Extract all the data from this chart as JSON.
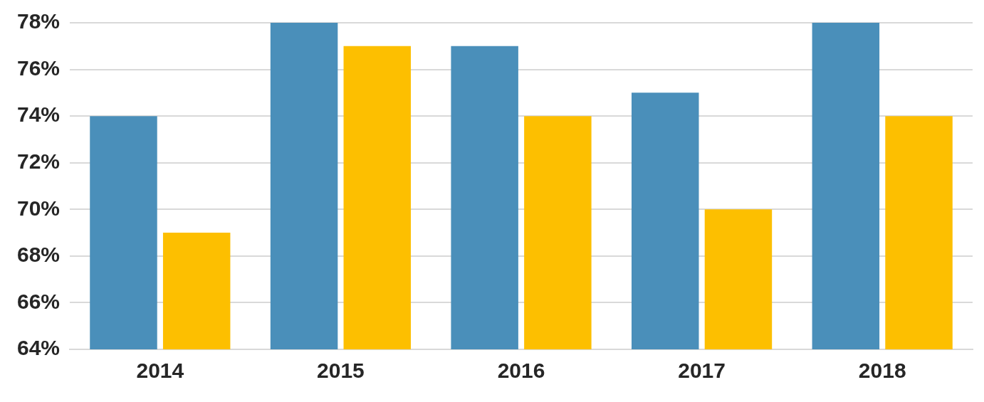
{
  "chart_data": {
    "type": "bar",
    "categories": [
      "2014",
      "2015",
      "2016",
      "2017",
      "2018"
    ],
    "series": [
      {
        "color": "#4a8fba",
        "values": [
          74,
          78,
          77,
          75,
          78
        ]
      },
      {
        "color": "#fdbf00",
        "values": [
          69,
          77,
          74,
          70,
          74
        ]
      }
    ],
    "ylim": [
      64,
      78
    ],
    "yticks": [
      {
        "value": 64,
        "label": "64%"
      },
      {
        "value": 66,
        "label": "66%"
      },
      {
        "value": 68,
        "label": "68%"
      },
      {
        "value": 70,
        "label": "70%"
      },
      {
        "value": 72,
        "label": "72%"
      },
      {
        "value": 74,
        "label": "74%"
      },
      {
        "value": 76,
        "label": "76%"
      },
      {
        "value": 78,
        "label": "78%"
      }
    ],
    "grid": "y",
    "legend": false
  }
}
